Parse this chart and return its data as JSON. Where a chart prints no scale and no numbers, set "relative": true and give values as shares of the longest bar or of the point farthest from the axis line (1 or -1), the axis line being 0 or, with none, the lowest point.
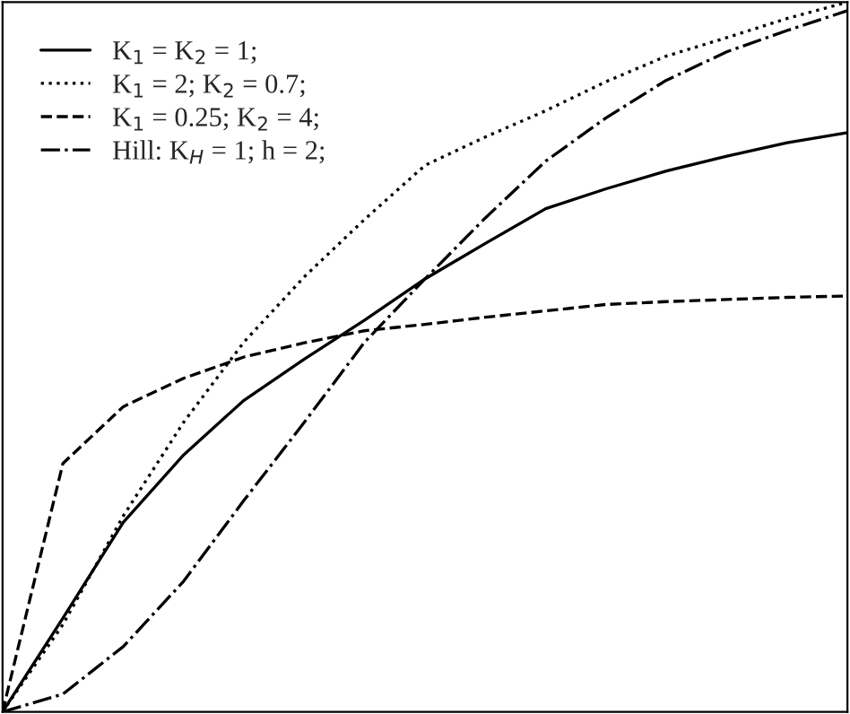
{
  "chart_data": {
    "type": "line",
    "relative": true,
    "legend": "top left",
    "marker": "none",
    "categories": [
      null,
      null,
      null,
      null,
      null,
      null,
      null,
      null,
      null,
      null,
      null,
      null,
      null,
      null,
      null
    ],
    "series": [
      {
        "name": "K$_{1}$ = K$_{2}$ = 1;",
        "color": "#000000",
        "line_style": "solid",
        "values": [
          0,
          0.132,
          0.267,
          0.362,
          0.439,
          0.497,
          0.552,
          0.61,
          0.66,
          0.709,
          0.737,
          0.762,
          0.783,
          0.802,
          0.816
        ]
      },
      {
        "name": "K$_{1}$ = 2; K$_{2}$ = 0.7;",
        "color": "#000000",
        "line_style": "dotted",
        "values": [
          0,
          0.123,
          0.276,
          0.408,
          0.521,
          0.613,
          0.694,
          0.77,
          0.81,
          0.847,
          0.888,
          0.924,
          0.95,
          0.977,
          1.0
        ]
      },
      {
        "name": "K$_{1}$ = 0.25; K$_{2}$ = 4;",
        "color": "#000000",
        "line_style": "dashed",
        "values": [
          0,
          0.35,
          0.43,
          0.47,
          0.5,
          0.52,
          0.537,
          0.546,
          0.556,
          0.565,
          0.574,
          0.578,
          0.581,
          0.584,
          0.586
        ]
      },
      {
        "name": "Hill: K$_{H}$ = 1; h = 2;",
        "color": "#000000",
        "line_style": "dashdot",
        "values": [
          0,
          0.025,
          0.092,
          0.184,
          0.298,
          0.408,
          0.521,
          0.61,
          0.696,
          0.776,
          0.837,
          0.89,
          0.93,
          0.96,
          0.988
        ]
      }
    ]
  }
}
